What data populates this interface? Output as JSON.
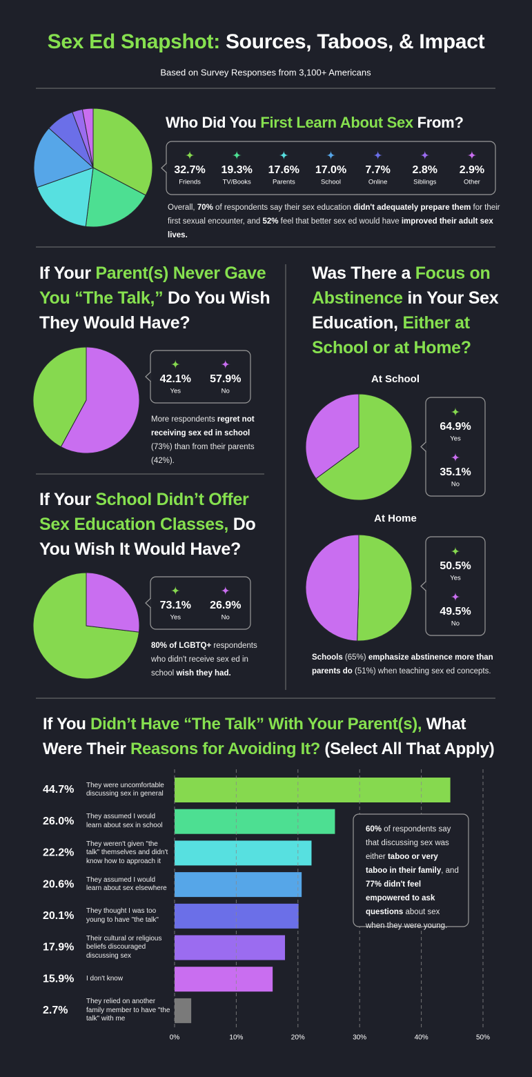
{
  "header": {
    "title": [
      {
        "text": "Sex Ed Snapshot:",
        "color": "#86e04f"
      },
      {
        "text": " Sources, Taboos, & Impact",
        "color": "#ffffff"
      }
    ],
    "subtitle": "Based on Survey Responses from 3,100+ Americans"
  },
  "chart_data": [
    {
      "type": "pie",
      "title": [
        {
          "text": "Who Did You ",
          "color": "#ffffff"
        },
        {
          "text": "First Learn About Sex",
          "color": "#86e04f"
        },
        {
          "text": " From?",
          "color": "#ffffff"
        }
      ],
      "categories": [
        "Friends",
        "TV/Books",
        "Parents",
        "School",
        "Online",
        "Siblings",
        "Other"
      ],
      "values": [
        32.7,
        19.3,
        17.6,
        17.0,
        7.7,
        2.8,
        2.9
      ],
      "value_labels": [
        "32.7%",
        "19.3%",
        "17.6%",
        "17.0%",
        "7.7%",
        "2.8%",
        "2.9%"
      ],
      "colors": [
        "#86d94f",
        "#4ddf92",
        "#57e0e0",
        "#56a6e8",
        "#6b6fe8",
        "#9b6cf0",
        "#c96ef0"
      ],
      "note": [
        {
          "text": "Overall, "
        },
        {
          "text": "70%",
          "bold": true
        },
        {
          "text": " of respondents say their sex education "
        },
        {
          "text": "didn't adequately prepare them",
          "bold": true
        },
        {
          "text": " for their first sexual encounter, and "
        },
        {
          "text": "52%",
          "bold": true
        },
        {
          "text": " feel that better sex ed would have "
        },
        {
          "text": "improved their adult sex lives.",
          "bold": true
        }
      ]
    },
    {
      "type": "pie",
      "counterclockwise": true,
      "title": [
        {
          "text": "If Your ",
          "color": "#ffffff"
        },
        {
          "text": "Parent(s) Never Gave You “The Talk,”",
          "color": "#86e04f"
        },
        {
          "text": " Do You Wish They Would Have?",
          "color": "#ffffff"
        }
      ],
      "categories": [
        "Yes",
        "No"
      ],
      "values": [
        42.1,
        57.9
      ],
      "value_labels": [
        "42.1%",
        "57.9%"
      ],
      "colors": [
        "#86d94f",
        "#c96ef0"
      ],
      "note": [
        {
          "text": "More respondents "
        },
        {
          "text": "regret not receiving sex ed in school",
          "bold": true
        },
        {
          "text": " (73%) than from their parents (42%)."
        }
      ]
    },
    {
      "type": "pie",
      "counterclockwise": true,
      "title": [
        {
          "text": "If Your ",
          "color": "#ffffff"
        },
        {
          "text": "School Didn’t Offer Sex Education Classes,",
          "color": "#86e04f"
        },
        {
          "text": " Do You Wish It Would Have?",
          "color": "#ffffff"
        }
      ],
      "categories": [
        "Yes",
        "No"
      ],
      "values": [
        73.1,
        26.9
      ],
      "value_labels": [
        "73.1%",
        "26.9%"
      ],
      "colors": [
        "#86d94f",
        "#c96ef0"
      ],
      "note": [
        {
          "text": "80% of LGBTQ+",
          "bold": true
        },
        {
          "text": " respondents who didn't receive sex ed in school "
        },
        {
          "text": "wish they had.",
          "bold": true
        }
      ]
    },
    {
      "type": "pie",
      "title": [
        {
          "text": "Was There a ",
          "color": "#ffffff"
        },
        {
          "text": "Focus on Abstinence",
          "color": "#86e04f"
        },
        {
          "text": " in Your Sex Education, ",
          "color": "#ffffff"
        },
        {
          "text": "Either at School or at Home?",
          "color": "#86e04f"
        }
      ],
      "subtitle": "At School",
      "categories": [
        "Yes",
        "No"
      ],
      "values": [
        64.9,
        35.1
      ],
      "value_labels": [
        "64.9%",
        "35.1%"
      ],
      "colors": [
        "#86d94f",
        "#c96ef0"
      ]
    },
    {
      "type": "pie",
      "subtitle": "At Home",
      "categories": [
        "Yes",
        "No"
      ],
      "values": [
        50.5,
        49.5
      ],
      "value_labels": [
        "50.5%",
        "49.5%"
      ],
      "colors": [
        "#86d94f",
        "#c96ef0"
      ],
      "note": [
        {
          "text": "Schools",
          "bold": true
        },
        {
          "text": " (65%) "
        },
        {
          "text": "emphasize abstinence more than parents do",
          "bold": true
        },
        {
          "text": " (51%) when teaching sex ed concepts."
        }
      ]
    },
    {
      "type": "hbar",
      "title": [
        {
          "text": "If You ",
          "color": "#ffffff"
        },
        {
          "text": "Didn’t Have “The Talk” With Your Parent(s),",
          "color": "#86e04f"
        },
        {
          "text": " What Were Their ",
          "color": "#ffffff"
        },
        {
          "text": "Reasons for Avoiding It?",
          "color": "#86e04f"
        },
        {
          "text": " (Select All That Apply)",
          "color": "#ffffff"
        }
      ],
      "categories": [
        "They were uncomfortable discussing sex in general",
        "They assumed I would learn about sex in school",
        "They weren't given \"the talk\" themselves and didn't know how to approach it",
        "They assumed I would learn about sex elsewhere",
        "They thought I was too young to have \"the talk\"",
        "Their cultural or religious beliefs discouraged discussing sex",
        "I don't know",
        "They relied on another family member to have \"the talk\" with me"
      ],
      "values": [
        44.7,
        26.0,
        22.2,
        20.6,
        20.1,
        17.9,
        15.9,
        2.7
      ],
      "value_labels": [
        "44.7%",
        "26.0%",
        "22.2%",
        "20.6%",
        "20.1%",
        "17.9%",
        "15.9%",
        "2.7%"
      ],
      "colors": [
        "#86d94f",
        "#4ddf92",
        "#57e0e0",
        "#56a6e8",
        "#6b6fe8",
        "#9b6cf0",
        "#c96ef0",
        "#7a7a7a"
      ],
      "xlim": [
        0,
        50
      ],
      "xticks": [
        {
          "value": 0,
          "label": "0%"
        },
        {
          "value": 10,
          "label": "10%"
        },
        {
          "value": 20,
          "label": "20%"
        },
        {
          "value": 30,
          "label": "30%"
        },
        {
          "value": 40,
          "label": "40%"
        },
        {
          "value": 50,
          "label": "50%"
        }
      ],
      "grid": true,
      "note": [
        {
          "text": "60%",
          "bold": true
        },
        {
          "text": " of respondents say that discussing sex was either "
        },
        {
          "text": "taboo or very taboo in their family",
          "bold": true
        },
        {
          "text": ", and "
        },
        {
          "text": "77% didn't feel empowered to ask questions",
          "bold": true
        },
        {
          "text": " about sex when they were young."
        }
      ]
    }
  ]
}
